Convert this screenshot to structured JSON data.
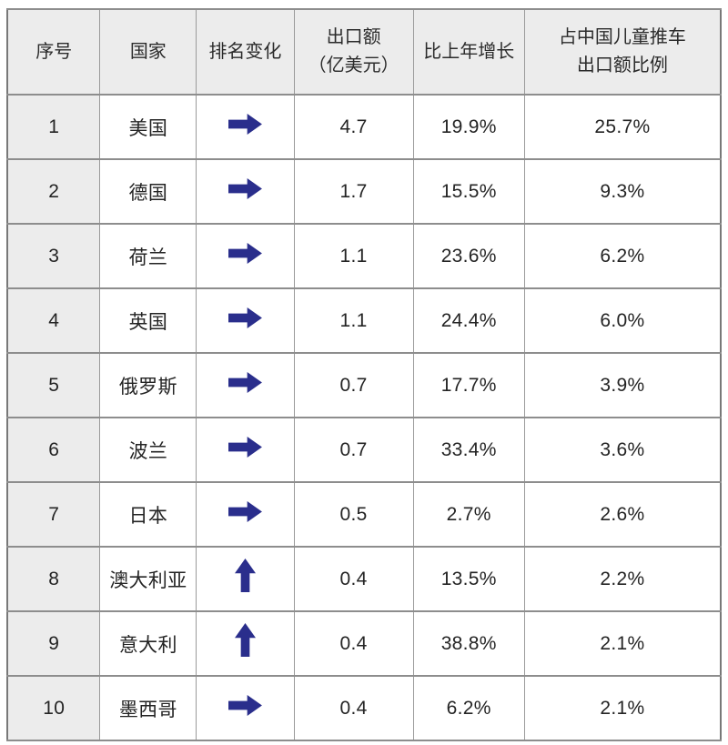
{
  "colors": {
    "arrow_blue": "#2a2e8c",
    "header_bg": "#ececec",
    "grid_line": "#8d8d8d",
    "text": "#242424"
  },
  "table": {
    "headers": [
      {
        "id": "rank",
        "label": "序号"
      },
      {
        "id": "country",
        "label": "国家"
      },
      {
        "id": "change",
        "label": "排名变化"
      },
      {
        "id": "export",
        "label": "出口额\n（亿美元）"
      },
      {
        "id": "growth",
        "label": "比上年增长"
      },
      {
        "id": "share",
        "label": "占中国儿童推车\n出口额比例"
      }
    ],
    "rows": [
      {
        "rank": "1",
        "country": "美国",
        "change": "right",
        "export": "4.7",
        "growth": "19.9%",
        "share": "25.7%"
      },
      {
        "rank": "2",
        "country": "德国",
        "change": "right",
        "export": "1.7",
        "growth": "15.5%",
        "share": "9.3%"
      },
      {
        "rank": "3",
        "country": "荷兰",
        "change": "right",
        "export": "1.1",
        "growth": "23.6%",
        "share": "6.2%"
      },
      {
        "rank": "4",
        "country": "英国",
        "change": "right",
        "export": "1.1",
        "growth": "24.4%",
        "share": "6.0%"
      },
      {
        "rank": "5",
        "country": "俄罗斯",
        "change": "right",
        "export": "0.7",
        "growth": "17.7%",
        "share": "3.9%"
      },
      {
        "rank": "6",
        "country": "波兰",
        "change": "right",
        "export": "0.7",
        "growth": "33.4%",
        "share": "3.6%"
      },
      {
        "rank": "7",
        "country": "日本",
        "change": "right",
        "export": "0.5",
        "growth": "2.7%",
        "share": "2.6%"
      },
      {
        "rank": "8",
        "country": "澳大利亚",
        "change": "up",
        "export": "0.4",
        "growth": "13.5%",
        "share": "2.2%"
      },
      {
        "rank": "9",
        "country": "意大利",
        "change": "up",
        "export": "0.4",
        "growth": "38.8%",
        "share": "2.1%"
      },
      {
        "rank": "10",
        "country": "墨西哥",
        "change": "right",
        "export": "0.4",
        "growth": "6.2%",
        "share": "2.1%"
      }
    ]
  },
  "chart_data": {
    "type": "table",
    "title": "",
    "columns": [
      "序号",
      "国家",
      "排名变化",
      "出口额（亿美元）",
      "比上年增长",
      "占中国儿童推车出口额比例"
    ],
    "rows": [
      [
        1,
        "美国",
        "→",
        4.7,
        "19.9%",
        "25.7%"
      ],
      [
        2,
        "德国",
        "→",
        1.7,
        "15.5%",
        "9.3%"
      ],
      [
        3,
        "荷兰",
        "→",
        1.1,
        "23.6%",
        "6.2%"
      ],
      [
        4,
        "英国",
        "→",
        1.1,
        "24.4%",
        "6.0%"
      ],
      [
        5,
        "俄罗斯",
        "→",
        0.7,
        "17.7%",
        "3.9%"
      ],
      [
        6,
        "波兰",
        "→",
        0.7,
        "33.4%",
        "3.6%"
      ],
      [
        7,
        "日本",
        "→",
        0.5,
        "2.7%",
        "2.6%"
      ],
      [
        8,
        "澳大利亚",
        "↑",
        0.4,
        "13.5%",
        "2.2%"
      ],
      [
        9,
        "意大利",
        "↑",
        0.4,
        "38.8%",
        "2.1%"
      ],
      [
        10,
        "墨西哥",
        "→",
        0.4,
        "6.2%",
        "2.1%"
      ]
    ]
  }
}
